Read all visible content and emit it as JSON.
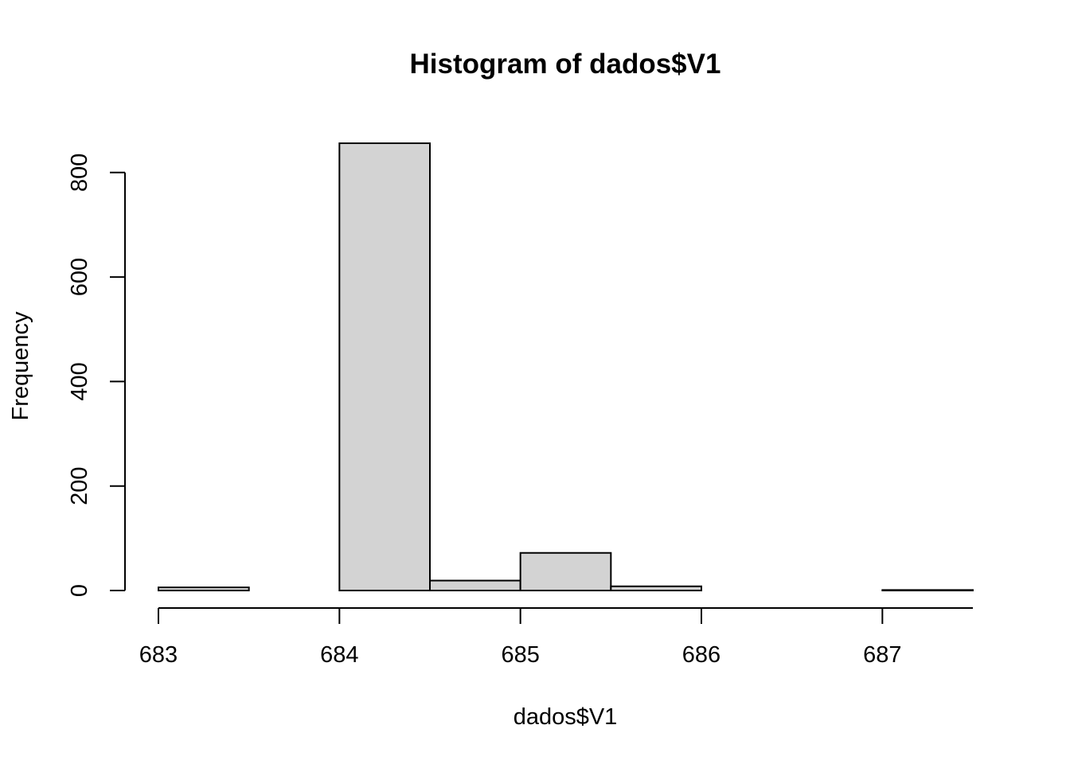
{
  "chart_data": {
    "type": "bar",
    "title": "Histogram of dados$V1",
    "xlabel": "dados$V1",
    "ylabel": "Frequency",
    "bins": [
      {
        "start": 683.0,
        "end": 683.5,
        "count": 6
      },
      {
        "start": 683.5,
        "end": 684.0,
        "count": 0
      },
      {
        "start": 684.0,
        "end": 684.5,
        "count": 856
      },
      {
        "start": 684.5,
        "end": 685.0,
        "count": 19
      },
      {
        "start": 685.0,
        "end": 685.5,
        "count": 72
      },
      {
        "start": 685.5,
        "end": 686.0,
        "count": 8
      },
      {
        "start": 686.0,
        "end": 686.5,
        "count": 0
      },
      {
        "start": 686.5,
        "end": 687.0,
        "count": 0
      },
      {
        "start": 687.0,
        "end": 687.5,
        "count": 1
      }
    ],
    "xlim": [
      683,
      687.5
    ],
    "ylim": [
      0,
      856
    ],
    "x_ticks": [
      683,
      684,
      685,
      686,
      687
    ],
    "y_ticks": [
      0,
      200,
      400,
      600,
      800
    ],
    "bar_color": "#d3d3d3",
    "edge_color": "#000000",
    "grid": false,
    "legend": "none"
  }
}
